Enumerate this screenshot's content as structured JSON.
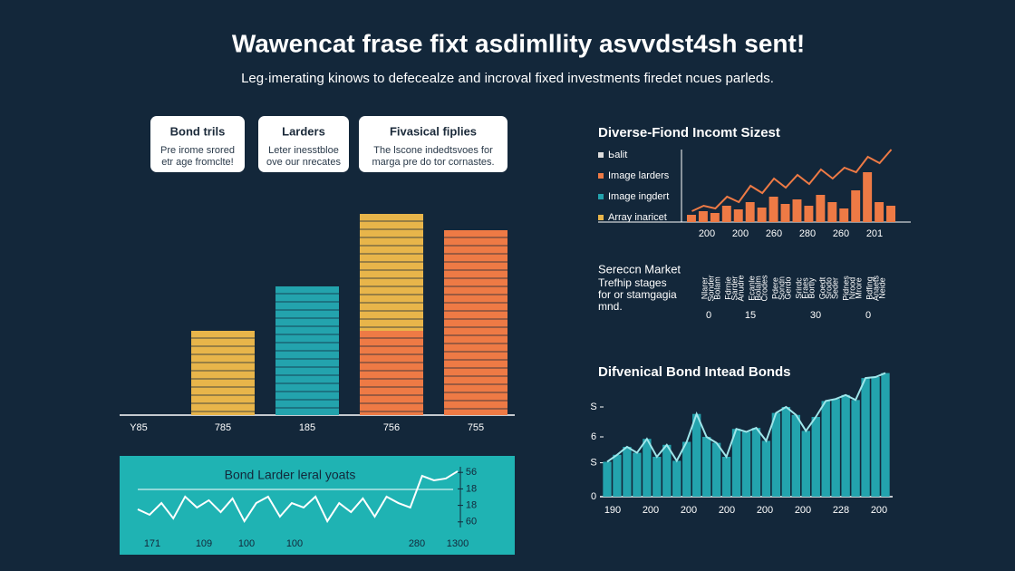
{
  "header": {
    "title": "Wawencat frase fixt  asdimllity asvvdst4sh sent!",
    "subtitle": "Leg·imerating kinows to defecealze and incroval fixed investments firedet ncues parleds."
  },
  "cards": [
    {
      "title": "Bond trils",
      "lines": [
        "Pre irome srored",
        "etr age fromclte!"
      ]
    },
    {
      "title": "Larders",
      "lines": [
        "Leter inesstbloe",
        "ove our nrecates"
      ]
    },
    {
      "title": "Fivasical fiplies",
      "lines": [
        "The lscone indedtsvoes for",
        "marga pre do tor cornastes."
      ]
    }
  ],
  "market": {
    "title": "Sereccn Market",
    "lines": [
      "Trefhip stages",
      "for or stamgagia",
      "mnd."
    ],
    "columns": [
      [
        "Nlarer",
        "Sonder",
        "Bolam"
      ],
      [
        "Fdrnie",
        "Sarder",
        "Anudre"
      ],
      [
        "Ecanle",
        "Bolalm",
        "Crodes"
      ],
      [
        "Pdere",
        "Sondn",
        "Gerdo"
      ],
      [
        "Srirdc",
        "Eraes",
        "Bortly"
      ],
      [
        "Goedt",
        "Srodo",
        "Seder"
      ],
      [
        "Pidnes",
        "Nrood",
        "Mrore"
      ],
      [
        "Bdfing",
        "Anaets",
        "Neide"
      ]
    ],
    "numbers": [
      "0",
      "15",
      "30",
      "0"
    ]
  },
  "chart_data": [
    {
      "type": "bar",
      "categories": [
        "Y85",
        "785",
        "185",
        "756",
        "755"
      ],
      "series": [
        {
          "colors": [
            "#e8b54a",
            "#e8b54a",
            "#23a3ad",
            "#ee7a45",
            "#ee7a45"
          ],
          "values": [
            null,
            93,
            142,
            93,
            204
          ]
        },
        {
          "colors": [
            "#e8b54a",
            "#e8b54a",
            "#e8b54a",
            "#e8b54a",
            "#e8b54a"
          ],
          "values": [
            null,
            null,
            null,
            129,
            null
          ]
        }
      ]
    },
    {
      "type": "combo",
      "title": "Diverse-Fiond Incomt Sizest",
      "legend": [
        {
          "label": "Ьalit",
          "color": "#dddddd"
        },
        {
          "label": "Image larders",
          "color": "#ee7a45"
        },
        {
          "label": "Image ingdert",
          "color": "#23a3ad"
        },
        {
          "label": "Array inaricet",
          "color": "#e8b54a"
        }
      ],
      "x_tick_labels": [
        "200",
        "200",
        "260",
        "280",
        "260",
        "201"
      ],
      "bars": {
        "color": "#ee7a45",
        "values": [
          8,
          12,
          10,
          18,
          14,
          22,
          16,
          28,
          20,
          25,
          18,
          30,
          22,
          15,
          35,
          55,
          22,
          18
        ]
      },
      "line": {
        "color": "#ee7a45",
        "values": [
          12,
          18,
          15,
          28,
          22,
          40,
          32,
          48,
          38,
          52,
          42,
          58,
          48,
          60,
          55,
          72,
          65,
          80
        ]
      }
    },
    {
      "type": "area",
      "title": "Difvenical Bond Intead Bonds",
      "color": "#23a3ad",
      "ylim": [
        0,
        13
      ],
      "yticks": [
        0,
        {
          "value": 3.4,
          "label": "S"
        },
        6,
        {
          "value": 9,
          "label": "S"
        }
      ],
      "x_tick_labels": [
        "190",
        "200",
        "200",
        "200",
        "200",
        "200",
        "228",
        "200"
      ],
      "values": [
        3.5,
        4.2,
        5.0,
        4.4,
        5.8,
        4.0,
        5.2,
        3.6,
        5.5,
        8.3,
        6.0,
        5.4,
        4.0,
        6.8,
        6.5,
        6.9,
        5.6,
        8.4,
        9.0,
        8.2,
        6.6,
        8.0,
        9.6,
        9.8,
        10.2,
        9.7,
        11.9,
        12.0,
        12.4
      ]
    },
    {
      "type": "line",
      "title": "Bond Larder leral yoats",
      "color": "#ffffff",
      "ylim": [
        0,
        5
      ],
      "yticks": [
        {
          "value": 4,
          "label": "56"
        },
        {
          "value": 3,
          "label": "18"
        },
        {
          "value": 2,
          "label": "18"
        },
        {
          "value": 1,
          "label": "60"
        }
      ],
      "x_tick_labels": [
        "171",
        "109",
        "100",
        "100",
        "280",
        "1300"
      ],
      "values": [
        1.76,
        1.43,
        2.14,
        1.21,
        2.53,
        1.87,
        2.31,
        1.59,
        2.42,
        1.04,
        2.14,
        2.53,
        1.32,
        2.14,
        1.87,
        2.53,
        1.04,
        2.14,
        1.59,
        2.42,
        1.32,
        2.53,
        2.14,
        1.87,
        3.79,
        3.52,
        3.63,
        4.07
      ]
    }
  ]
}
